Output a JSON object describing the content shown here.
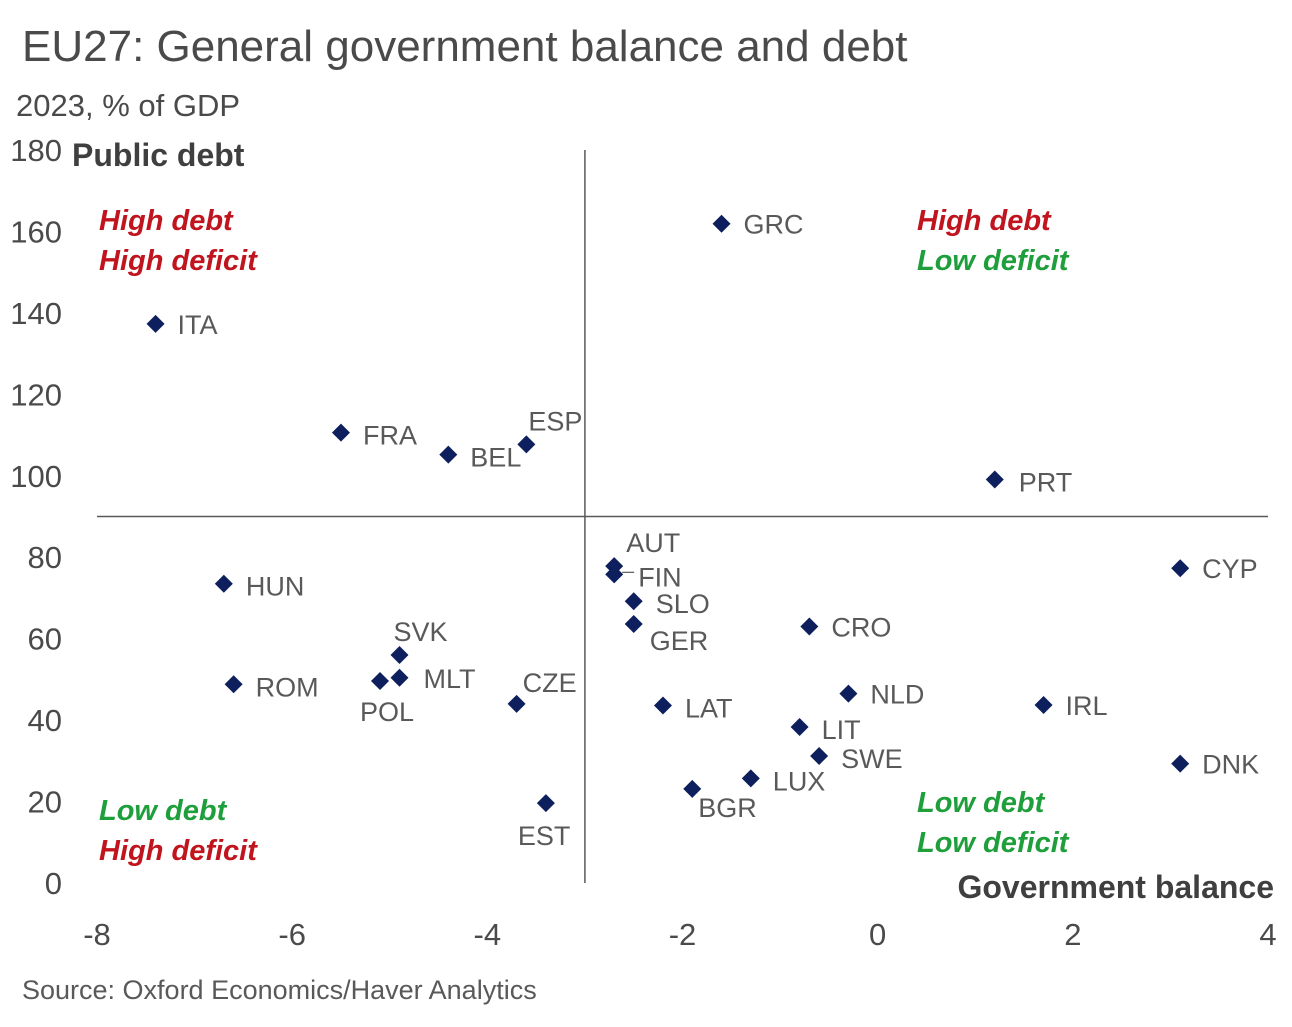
{
  "chart_data": {
    "type": "scatter",
    "title": "EU27: General government balance and debt",
    "subtitle": "2023, % of GDP",
    "xlabel": "Government balance",
    "ylabel": "Public debt",
    "xlim": [
      -8,
      4
    ],
    "ylim": [
      0,
      180
    ],
    "xticks": [
      -8,
      -6,
      -4,
      -2,
      0,
      2,
      4
    ],
    "yticks": [
      0,
      20,
      40,
      60,
      80,
      100,
      120,
      140,
      160,
      180
    ],
    "crosshair": {
      "x": -3,
      "y": 90
    },
    "marker_color": "#0d1f5c",
    "points": [
      {
        "label": "GRC",
        "x": -1.6,
        "y": 161.9
      },
      {
        "label": "ITA",
        "x": -7.4,
        "y": 137.3
      },
      {
        "label": "FRA",
        "x": -5.5,
        "y": 110.6
      },
      {
        "label": "BEL",
        "x": -4.4,
        "y": 105.2
      },
      {
        "label": "ESP",
        "x": -3.6,
        "y": 107.7
      },
      {
        "label": "PRT",
        "x": 1.2,
        "y": 99.1
      },
      {
        "label": "AUT",
        "x": -2.7,
        "y": 77.8
      },
      {
        "label": "FIN",
        "x": -2.7,
        "y": 75.8
      },
      {
        "label": "CYP",
        "x": 3.1,
        "y": 77.3
      },
      {
        "label": "HUN",
        "x": -6.7,
        "y": 73.5
      },
      {
        "label": "SLO",
        "x": -2.5,
        "y": 69.2
      },
      {
        "label": "GER",
        "x": -2.5,
        "y": 63.6
      },
      {
        "label": "CRO",
        "x": -0.7,
        "y": 63.0
      },
      {
        "label": "SVK",
        "x": -4.9,
        "y": 56.0
      },
      {
        "label": "MLT",
        "x": -4.9,
        "y": 50.4
      },
      {
        "label": "POL",
        "x": -5.1,
        "y": 49.6
      },
      {
        "label": "ROM",
        "x": -6.6,
        "y": 48.8
      },
      {
        "label": "CZE",
        "x": -3.7,
        "y": 44.0
      },
      {
        "label": "NLD",
        "x": -0.3,
        "y": 46.5
      },
      {
        "label": "LAT",
        "x": -2.2,
        "y": 43.6
      },
      {
        "label": "IRL",
        "x": 1.7,
        "y": 43.7
      },
      {
        "label": "LIT",
        "x": -0.8,
        "y": 38.3
      },
      {
        "label": "SWE",
        "x": -0.6,
        "y": 31.2
      },
      {
        "label": "DNK",
        "x": 3.1,
        "y": 29.3
      },
      {
        "label": "LUX",
        "x": -1.3,
        "y": 25.7
      },
      {
        "label": "BGR",
        "x": -1.9,
        "y": 23.1
      },
      {
        "label": "EST",
        "x": -3.4,
        "y": 19.6
      }
    ],
    "quadrants": {
      "top_left": [
        "High debt",
        "High deficit"
      ],
      "top_right": [
        "High debt",
        "Low deficit"
      ],
      "bottom_left": [
        "Low debt",
        "High deficit"
      ],
      "bottom_right": [
        "Low debt",
        "Low deficit"
      ]
    },
    "colors": {
      "red": "#c0141e",
      "green": "#1f9e3c"
    }
  },
  "source": "Source: Oxford Economics/Haver Analytics"
}
